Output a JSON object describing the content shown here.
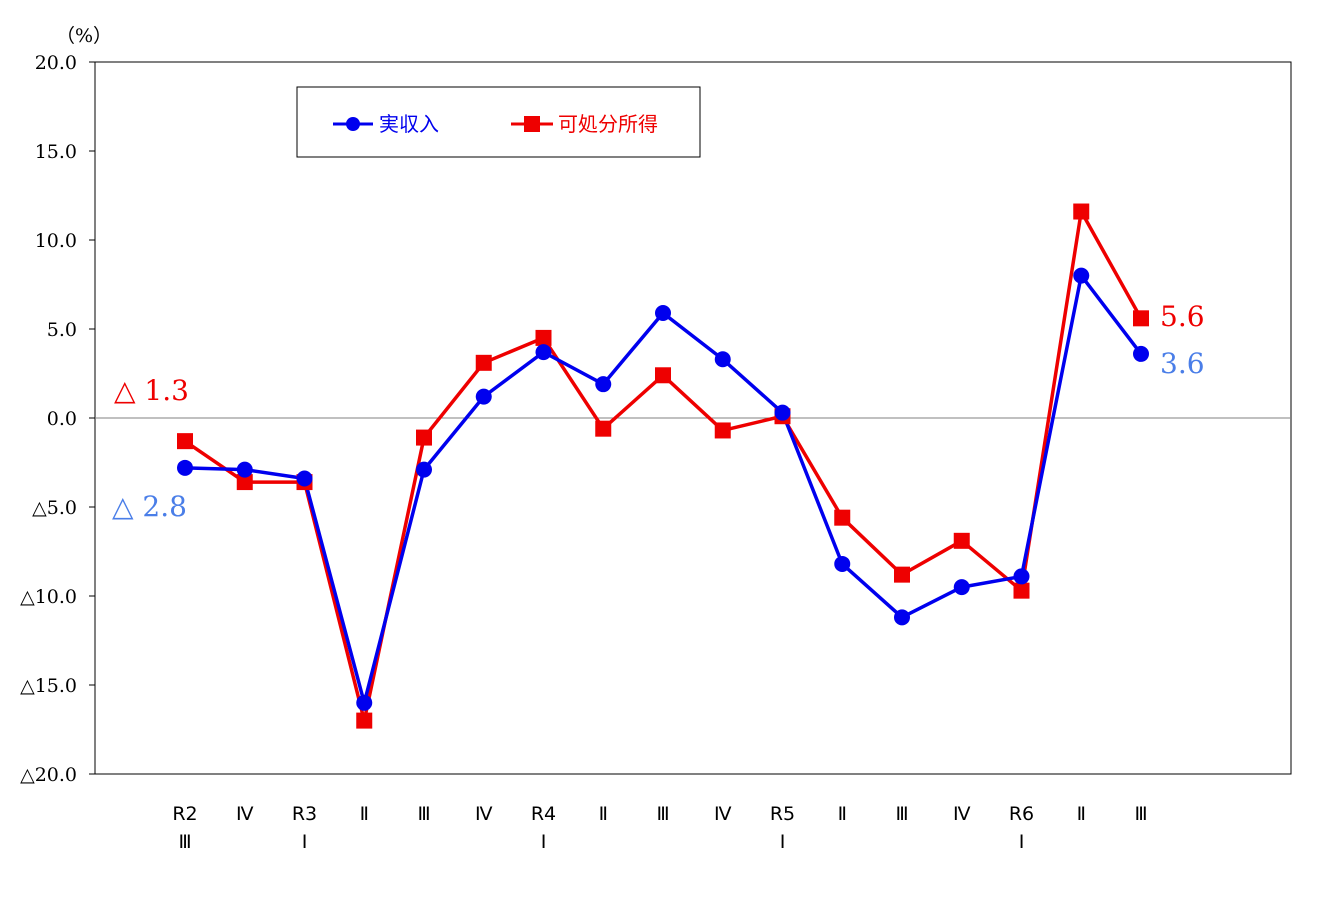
{
  "chart_data": {
    "type": "line",
    "ylabel": "（%）",
    "ylim": [
      -20,
      20
    ],
    "yticks": [
      {
        "value": 20,
        "label": "20.0"
      },
      {
        "value": 15,
        "label": "15.0"
      },
      {
        "value": 10,
        "label": "10.0"
      },
      {
        "value": 5,
        "label": "5.0"
      },
      {
        "value": 0,
        "label": "0.0"
      },
      {
        "value": -5,
        "label": "△5.0"
      },
      {
        "value": -10,
        "label": "△10.0"
      },
      {
        "value": -15,
        "label": "△15.0"
      },
      {
        "value": -20,
        "label": "△20.0"
      }
    ],
    "categories": [
      {
        "line1": "R2",
        "line2": "Ⅲ"
      },
      {
        "line1": "Ⅳ",
        "line2": ""
      },
      {
        "line1": "R3",
        "line2": "Ⅰ"
      },
      {
        "line1": "Ⅱ",
        "line2": ""
      },
      {
        "line1": "Ⅲ",
        "line2": ""
      },
      {
        "line1": "Ⅳ",
        "line2": ""
      },
      {
        "line1": "R4",
        "line2": "Ⅰ"
      },
      {
        "line1": "Ⅱ",
        "line2": ""
      },
      {
        "line1": "Ⅲ",
        "line2": ""
      },
      {
        "line1": "Ⅳ",
        "line2": ""
      },
      {
        "line1": "R5",
        "line2": "Ⅰ"
      },
      {
        "line1": "Ⅱ",
        "line2": ""
      },
      {
        "line1": "Ⅲ",
        "line2": ""
      },
      {
        "line1": "Ⅳ",
        "line2": ""
      },
      {
        "line1": "R6",
        "line2": "Ⅰ"
      },
      {
        "line1": "Ⅱ",
        "line2": ""
      },
      {
        "line1": "Ⅲ",
        "line2": ""
      }
    ],
    "series": [
      {
        "name": "実収入",
        "color": "#0000ee",
        "marker": "circle",
        "values": [
          -2.8,
          -2.9,
          -3.4,
          -16.0,
          -2.9,
          1.2,
          3.7,
          1.9,
          5.9,
          3.3,
          0.3,
          -8.2,
          -11.2,
          -9.5,
          -8.9,
          8.0,
          3.6
        ]
      },
      {
        "name": "可処分所得",
        "color": "#ee0000",
        "marker": "square",
        "values": [
          -1.3,
          -3.6,
          -3.6,
          -17.0,
          -1.1,
          3.1,
          4.5,
          -0.6,
          2.4,
          -0.7,
          0.1,
          -5.6,
          -8.8,
          -6.9,
          -9.7,
          11.6,
          5.6
        ]
      }
    ],
    "annotations": [
      {
        "text": "△ 1.3",
        "color": "#ee0000",
        "target": "可処分所得 R2 Ⅲ"
      },
      {
        "text": "△ 2.8",
        "color": "#4a7ee8",
        "target": "実収入 R2 Ⅲ"
      },
      {
        "text": "5.6",
        "color": "#ee0000",
        "target": "可処分所得 R6 Ⅲ"
      },
      {
        "text": "3.6",
        "color": "#4a7ee8",
        "target": "実収入 R6 Ⅲ"
      }
    ]
  }
}
